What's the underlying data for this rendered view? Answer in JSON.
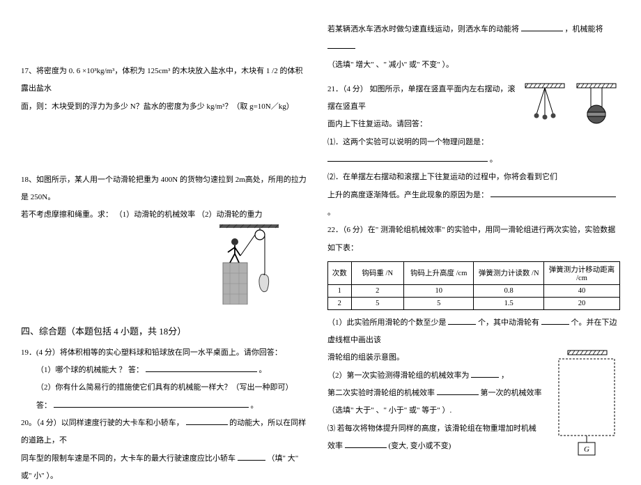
{
  "left": {
    "q17a": "17、将密度为   0. 6 ×10³kg/m³，体积为   125cm³ 的木块放入盐水中，木块有 1    /2 的体积露出盐水",
    "q17b": "面，则：木块受到的浮力为多少     N？盐水的密度为多少    kg/m³？（取 g=10N／kg）",
    "q18a": "18、如图所示，某人用一个动滑轮把重为     400N 的货物匀速拉到   2m高处，所用的拉力是    250N。",
    "q18b": "若不考虑摩擦和绳重。求：   （1）动滑轮的机械效率    （2）动滑轮的重力",
    "section4": "四、综合题（本题包括  4 小题，共 18分）",
    "q19": "19．(4 分）将体积相等的实心塑料球和铅球放在同一水平桌面上。请你回答：",
    "q19_1": "（1）哪个球的机械能大  ？   答：",
    "q19_1_end": "。",
    "q19_2": "（2）你有什么简易行的措施使它们具有的机械能一样大？（写出一种即可）",
    "q19_2a": "答：",
    "q19_2_end": "。",
    "q20a": "20。（4 分）以同样速度行驶的大卡车和小轿车，",
    "q20b": "的动能大，所以在同样的道路上，不",
    "q20c": "同车型的限制车速是不同的，大卡车的最大行驶速度应比小轿车",
    "q20d": "（填\" 大\" 或\" 小\"  ）。"
  },
  "right": {
    "intro1": "若某辆洒水车洒水时做匀速直线运动，则洒水车的动能将",
    "intro2": "，机械能将",
    "intro3": "（选填\" 增大\" 、\" 减小\" 或\" 不变\"    ）。",
    "q21a": "21．（4 分） 如图所示，单摆在竖直平面内左右摆动，滚摆在竖直平",
    "q21b": "面内上下往复运动。请回答：",
    "q21c": "⑴．这两个实验可以说明的同一个物理问题是：",
    "q21c_end": "。",
    "q21d": "⑵．在单摆左右摆动和滚摆上下往复运动的过程中，你将会看到它们",
    "q21e": "上升的高度逐渐降低。产生此现象的原因为是：",
    "q21e_end": "。",
    "q22": "22．（6 分）在\" 测滑轮组机械效率\" 的实验中，用同一滑轮组进行两次实验，实验数据如下表：",
    "table": {
      "headers": [
        "次数",
        "钩码重 /N",
        "钩码上升高度 /cm",
        "弹簧测力计读数 /N",
        "弹簧测力计移动距离 /cm"
      ],
      "rows": [
        [
          "1",
          "2",
          "10",
          "0.8",
          "40"
        ],
        [
          "2",
          "5",
          "5",
          "1.5",
          "20"
        ]
      ],
      "col_widths": [
        "8%",
        "18%",
        "24%",
        "24%",
        "26%"
      ]
    },
    "q22_1a": "（1）此实验所用滑轮的个数至少是",
    "q22_1b": "个，其中动滑轮有",
    "q22_1c": "个。并在下边虚线框中画出该",
    "q22_1d": "滑轮组的组装示意图。",
    "q22_2a": "（2）第一次实验测得滑轮组的机械效率为",
    "q22_2_end": "，",
    "q22_3a": "第二次实验时滑轮组的机械效率",
    "q22_3b": "第一次的机械效率",
    "q22_3c": "（选填\" 大于\" 、\" 小于\" 或\" 等于\"     ）.",
    "q22_4a": "⑶ 若每次将物体提升同样的高度，该滑轮组在物重增加时机械",
    "q22_4b": "效率",
    "q22_4c": "(变大, 变小或不变)",
    "g_label": "G"
  },
  "icons": {
    "pulley_person_width": 85,
    "pulley_person_height": 115,
    "pendulum_width": 140,
    "pendulum_height": 60,
    "diagram_width": 100,
    "diagram_height": 150
  },
  "colors": {
    "text": "#000000",
    "bg": "#ffffff",
    "border": "#000000",
    "hatch": "#555555"
  }
}
